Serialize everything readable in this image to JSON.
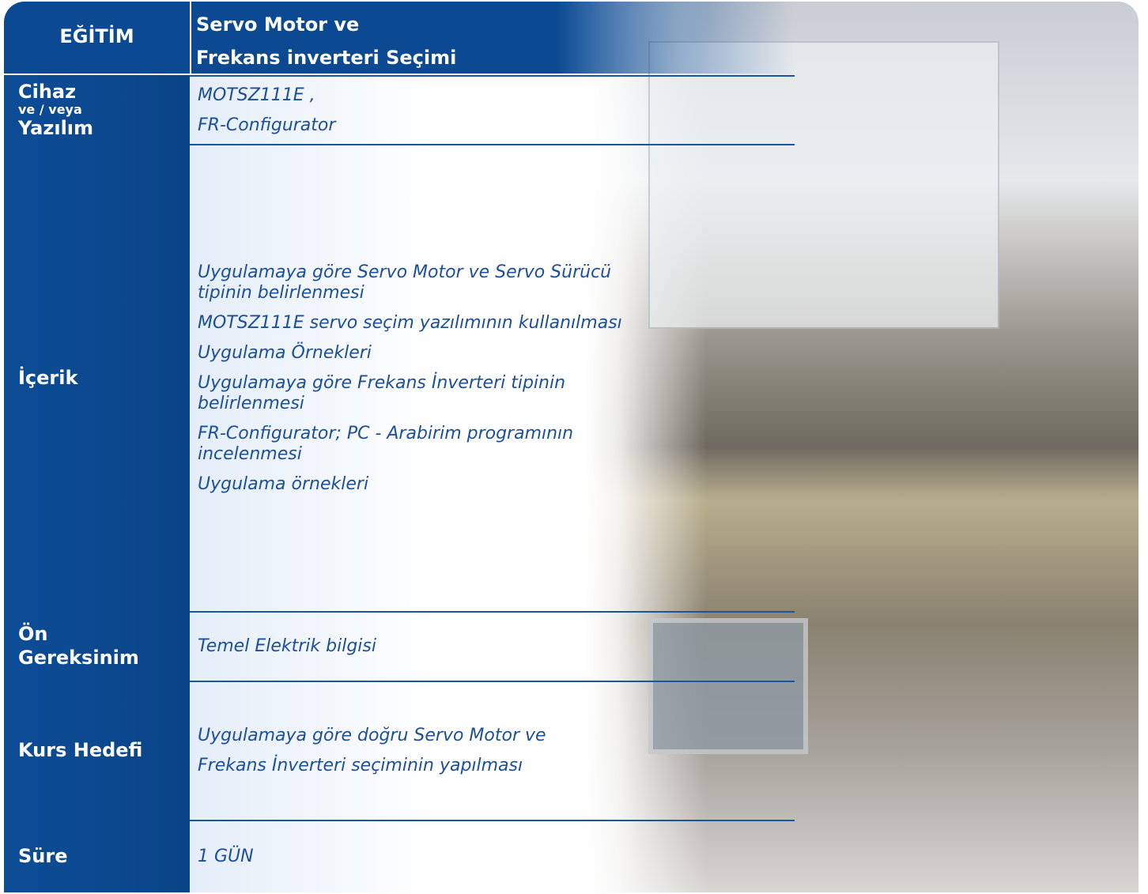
{
  "header": {
    "label": "EĞİTİM",
    "title": [
      "Servo Motor ve",
      "Frekans inverteri Seçimi"
    ]
  },
  "rows": [
    {
      "label": [
        "Cihaz",
        "ve / veya",
        "Yazılım"
      ],
      "content": [
        "MOTSZ111E ,",
        "FR-Configurator"
      ]
    },
    {
      "label": [
        "İçerik"
      ],
      "content": [
        "Uygulamaya göre Servo Motor ve Servo Sürücü tipinin belirlenmesi",
        "MOTSZ111E servo seçim yazılımının kullanılması",
        "Uygulama Örnekleri",
        "Uygulamaya göre Frekans İnverteri tipinin belirlenmesi",
        "FR-Configurator; PC - Arabirim programının incelenmesi",
        "Uygulama örnekleri"
      ]
    },
    {
      "label": [
        "Ön",
        "Gereksinim"
      ],
      "content": [
        "Temel Elektrik bilgisi"
      ]
    },
    {
      "label": [
        "Kurs Hedefi"
      ],
      "content": [
        "Uygulamaya göre doğru Servo Motor ve",
        "Frekans İnverteri seçiminin yapılması"
      ]
    },
    {
      "label": [
        "Süre"
      ],
      "content": [
        "1 GÜN"
      ]
    }
  ]
}
